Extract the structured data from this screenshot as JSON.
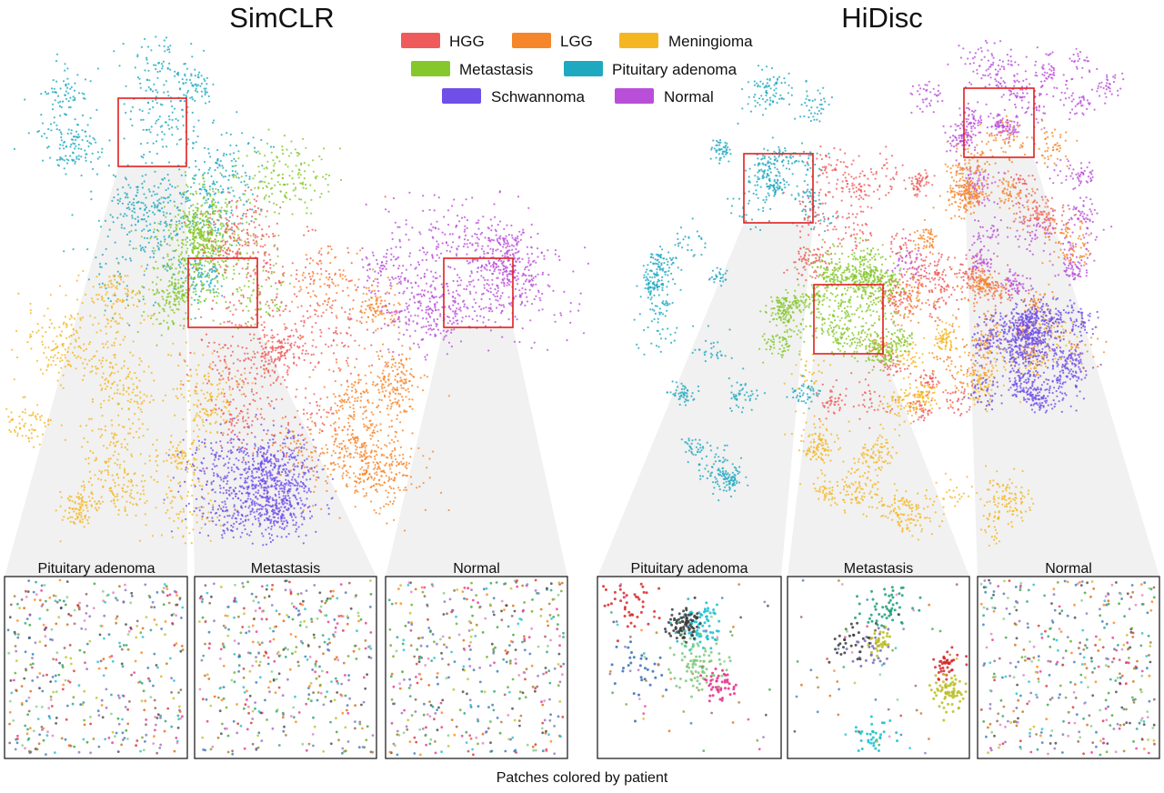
{
  "figure": {
    "caption": "Patches colored by patient"
  },
  "legend": {
    "items": [
      {
        "label": "HGG",
        "color": "#ef5b5b"
      },
      {
        "label": "LGG",
        "color": "#f5862a"
      },
      {
        "label": "Meningioma",
        "color": "#f4b722"
      },
      {
        "label": "Metastasis",
        "color": "#84c82c"
      },
      {
        "label": "Pituitary adenoma",
        "color": "#1fa9c0"
      },
      {
        "label": "Schwannoma",
        "color": "#6f4fe8"
      },
      {
        "label": "Normal",
        "color": "#b94fd8"
      }
    ]
  },
  "chart_data": [
    {
      "type": "scatter",
      "title": "SimCLR",
      "clusters": [
        {
          "class": "Pituitary adenoma",
          "extent": [
            0.03,
            0.4,
            0.02,
            0.5
          ]
        },
        {
          "class": "Meningioma",
          "extent": [
            0.02,
            0.36,
            0.52,
            0.97
          ]
        },
        {
          "class": "Metastasis",
          "extent": [
            0.28,
            0.52,
            0.28,
            0.56
          ]
        },
        {
          "class": "HGG",
          "extent": [
            0.38,
            0.6,
            0.4,
            0.8
          ]
        },
        {
          "class": "LGG",
          "extent": [
            0.5,
            0.8,
            0.4,
            0.92
          ]
        },
        {
          "class": "Normal",
          "extent": [
            0.68,
            0.98,
            0.38,
            0.6
          ]
        },
        {
          "class": "Schwannoma",
          "extent": [
            0.38,
            0.52,
            0.85,
            0.97
          ]
        }
      ],
      "zoom_boxes": [
        {
          "label": "Pituitary adenoma",
          "class": "Pituitary adenoma"
        },
        {
          "label": "Metastasis",
          "class": "Metastasis"
        },
        {
          "label": "Normal",
          "class": "Normal"
        }
      ]
    },
    {
      "type": "scatter",
      "title": "HiDisc",
      "clusters": [
        {
          "class": "Pituitary adenoma",
          "extent": [
            0.05,
            0.4,
            0.1,
            0.9
          ]
        },
        {
          "class": "Normal",
          "extent": [
            0.55,
            0.95,
            0.05,
            0.5
          ]
        },
        {
          "class": "HGG",
          "extent": [
            0.35,
            0.85,
            0.25,
            0.75
          ]
        },
        {
          "class": "LGG",
          "extent": [
            0.45,
            0.9,
            0.2,
            0.7
          ]
        },
        {
          "class": "Meningioma",
          "extent": [
            0.35,
            0.85,
            0.55,
            0.97
          ]
        },
        {
          "class": "Metastasis",
          "extent": [
            0.3,
            0.55,
            0.45,
            0.65
          ]
        },
        {
          "class": "Schwannoma",
          "extent": [
            0.7,
            0.9,
            0.55,
            0.72
          ]
        }
      ],
      "zoom_boxes": [
        {
          "label": "Pituitary adenoma",
          "class": "Pituitary adenoma"
        },
        {
          "label": "Metastasis",
          "class": "Metastasis"
        },
        {
          "label": "Normal",
          "class": "Normal"
        }
      ]
    }
  ]
}
